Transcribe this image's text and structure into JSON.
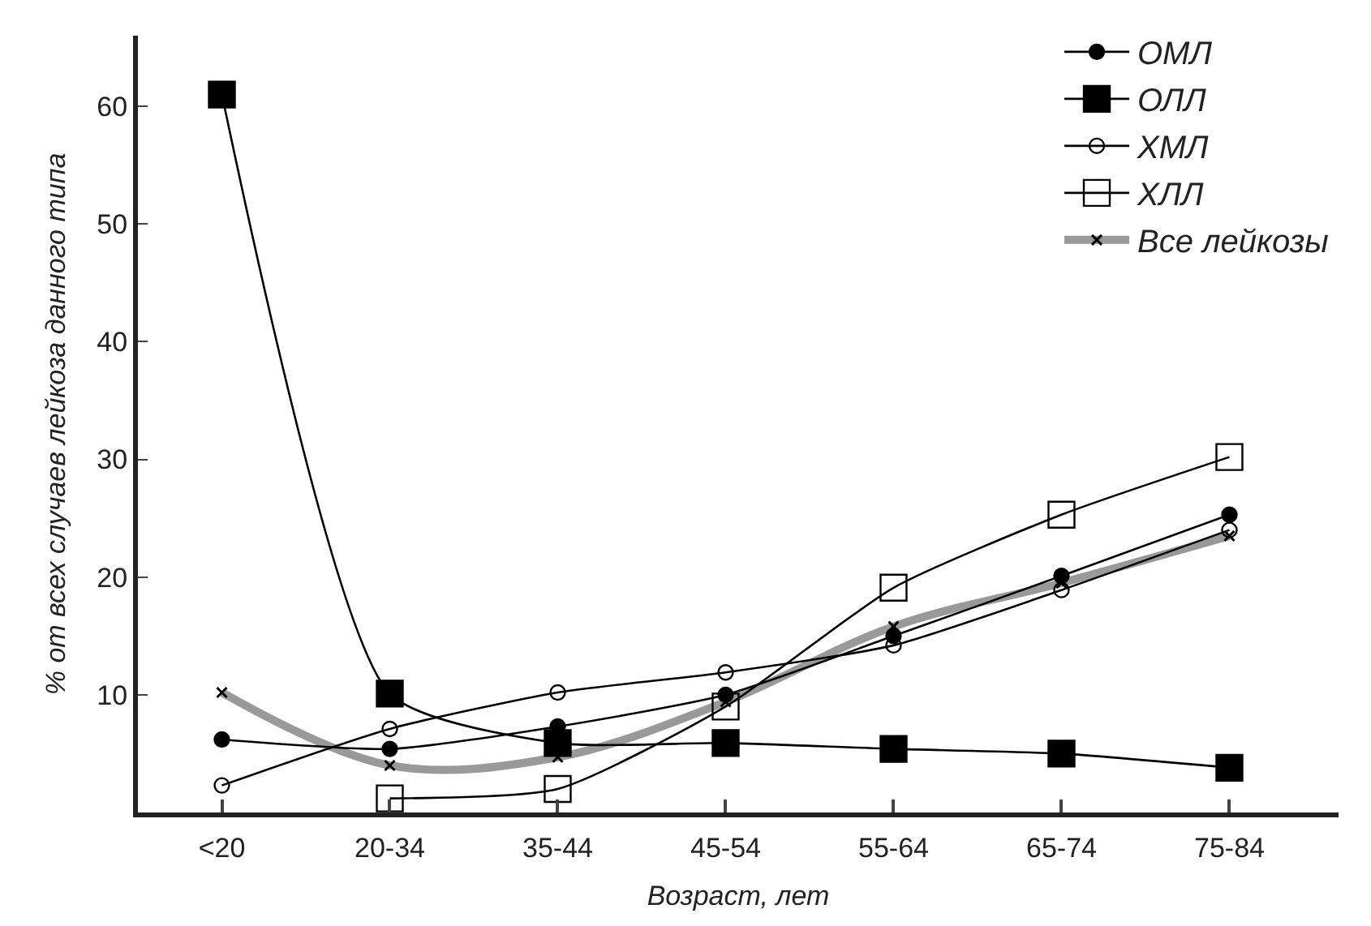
{
  "chart_data": {
    "type": "line",
    "xlabel": "Возраст, лет",
    "ylabel": "% от всех случаев лейкоза данного типа",
    "categories": [
      "<20",
      "20-34",
      "35-44",
      "45-54",
      "55-64",
      "65-74",
      "75-84"
    ],
    "ylim": [
      0,
      66
    ],
    "yticks": [
      10,
      20,
      30,
      40,
      50,
      60
    ],
    "legend": "top right",
    "line_style": "solid",
    "series": [
      {
        "name": "ОМЛ",
        "color": "#000000",
        "marker": "circle",
        "values": [
          6.2,
          5.4,
          7.3,
          10.0,
          15.0,
          20.1,
          25.3
        ]
      },
      {
        "name": "ОЛЛ",
        "color": "#000000",
        "marker": "square",
        "values": [
          61.0,
          10.1,
          5.9,
          5.9,
          5.4,
          5.0,
          3.8
        ]
      },
      {
        "name": "ХМЛ",
        "color": "#000000",
        "marker": "circle-open",
        "values": [
          2.3,
          7.1,
          10.2,
          11.9,
          14.2,
          18.9,
          24.0
        ]
      },
      {
        "name": "ХЛЛ",
        "color": "#000000",
        "marker": "square-open",
        "values": [
          null,
          1.2,
          2.0,
          9.0,
          19.1,
          25.3,
          30.2
        ]
      },
      {
        "name": "Все лейкозы",
        "color": "#999999",
        "marker": "cross",
        "values": [
          10.2,
          4.0,
          4.7,
          9.4,
          15.8,
          19.5,
          23.5
        ]
      }
    ]
  }
}
